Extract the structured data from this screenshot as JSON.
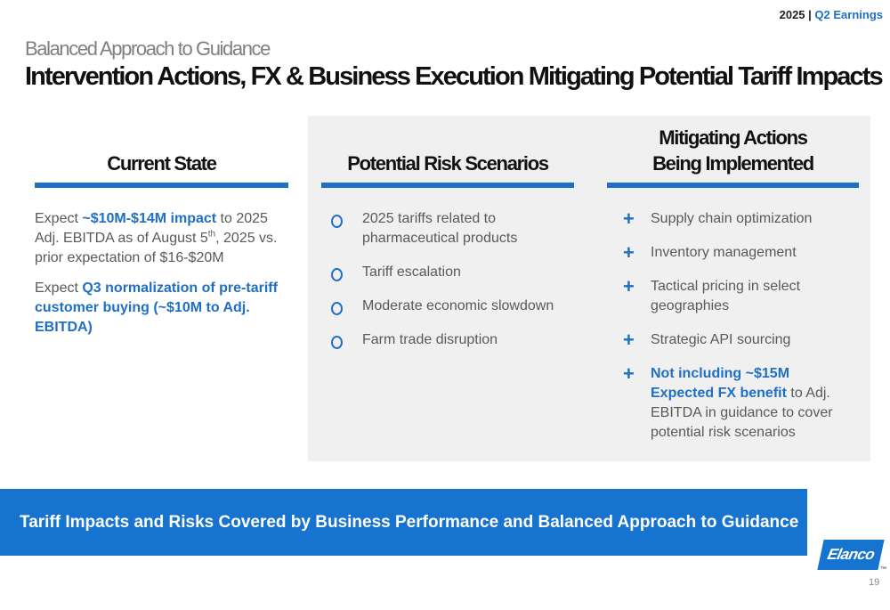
{
  "header": {
    "year": "2025",
    "separator": "|",
    "label": "Q2 Earnings"
  },
  "title": {
    "kicker": "Balanced Approach to Guidance",
    "main": "Intervention Actions, FX & Business Execution Mitigating Potential Tariff Impacts"
  },
  "columns": [
    {
      "heading": [
        "Current State"
      ],
      "bullet": "none",
      "items": [
        {
          "runs": [
            {
              "text": "Expect "
            },
            {
              "text": "~$10M-$14M impact",
              "style": "highlight"
            },
            {
              "text": " to 2025 Adj. EBITDA as of August 5"
            },
            {
              "text": "th",
              "style": "sup"
            },
            {
              "text": ", 2025 vs. prior expectation of $16-$20M"
            }
          ]
        },
        {
          "runs": [
            {
              "text": "Expect "
            },
            {
              "text": "Q3 normalization of pre-tariff customer buying (~$10M to Adj. EBITDA)",
              "style": "highlight"
            }
          ]
        }
      ]
    },
    {
      "heading": [
        "Potential Risk Scenarios"
      ],
      "bullet": "circle",
      "items": [
        {
          "runs": [
            {
              "text": "2025 tariffs related to pharmaceutical products"
            }
          ]
        },
        {
          "runs": [
            {
              "text": "Tariff escalation"
            }
          ]
        },
        {
          "runs": [
            {
              "text": "Moderate economic slowdown"
            }
          ]
        },
        {
          "runs": [
            {
              "text": "Farm trade disruption"
            }
          ]
        }
      ]
    },
    {
      "heading": [
        "Mitigating Actions",
        "Being Implemented"
      ],
      "bullet": "plus",
      "items": [
        {
          "runs": [
            {
              "text": "Supply chain optimization"
            }
          ]
        },
        {
          "runs": [
            {
              "text": "Inventory management"
            }
          ]
        },
        {
          "runs": [
            {
              "text": "Tactical pricing in select geographies"
            }
          ]
        },
        {
          "runs": [
            {
              "text": "Strategic API sourcing"
            }
          ]
        },
        {
          "runs": [
            {
              "text": "Not including ~$15M Expected FX benefit",
              "style": "highlight"
            },
            {
              "text": " to Adj. EBITDA in guidance to cover potential risk scenarios"
            }
          ]
        }
      ]
    }
  ],
  "banner": "Tariff Impacts and Risks Covered by Business Performance and Balanced Approach to Guidance",
  "footer": {
    "logo": "Elanco",
    "trademark": "™",
    "page": "19"
  }
}
